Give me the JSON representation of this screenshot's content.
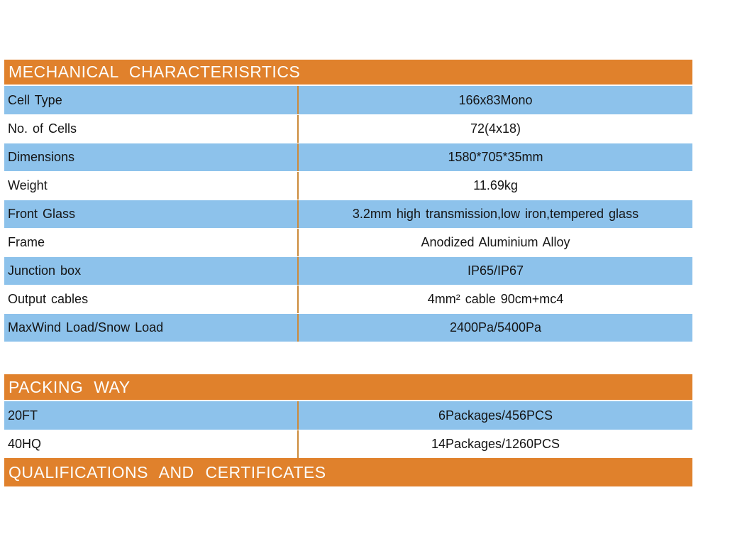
{
  "colors": {
    "section_header_bg": "#E0812C",
    "stripe_blue": "#8DC2EB",
    "column_divider": "#CC8A3A",
    "body_text": "#141414",
    "header_text": "#FDFDFB"
  },
  "mechanical": {
    "title": "MECHANICAL CHARACTERISRTICS",
    "rows": [
      {
        "label": "Cell Type",
        "value": "166x83Mono"
      },
      {
        "label": "No. of Cells",
        "value": "72(4x18)"
      },
      {
        "label": "Dimensions",
        "value": "1580*705*35mm"
      },
      {
        "label": "Weight",
        "value": "11.69kg"
      },
      {
        "label": "Front Glass",
        "value": "3.2mm high transmission,low iron,tempered glass"
      },
      {
        "label": "Frame",
        "value": "Anodized Aluminium Alloy"
      },
      {
        "label": "Junction box",
        "value": "IP65/IP67"
      },
      {
        "label": "Output cables",
        "value": "4mm² cable 90cm+mc4"
      },
      {
        "label": "MaxWind Load/Snow Load",
        "value": "2400Pa/5400Pa"
      }
    ]
  },
  "packing": {
    "title": "PACKING WAY",
    "rows": [
      {
        "label": "20FT",
        "value": "6Packages/456PCS"
      },
      {
        "label": "40HQ",
        "value": "14Packages/1260PCS"
      }
    ]
  },
  "qualifications": {
    "title": "QUALIFICATIONS AND CERTIFICATES"
  }
}
